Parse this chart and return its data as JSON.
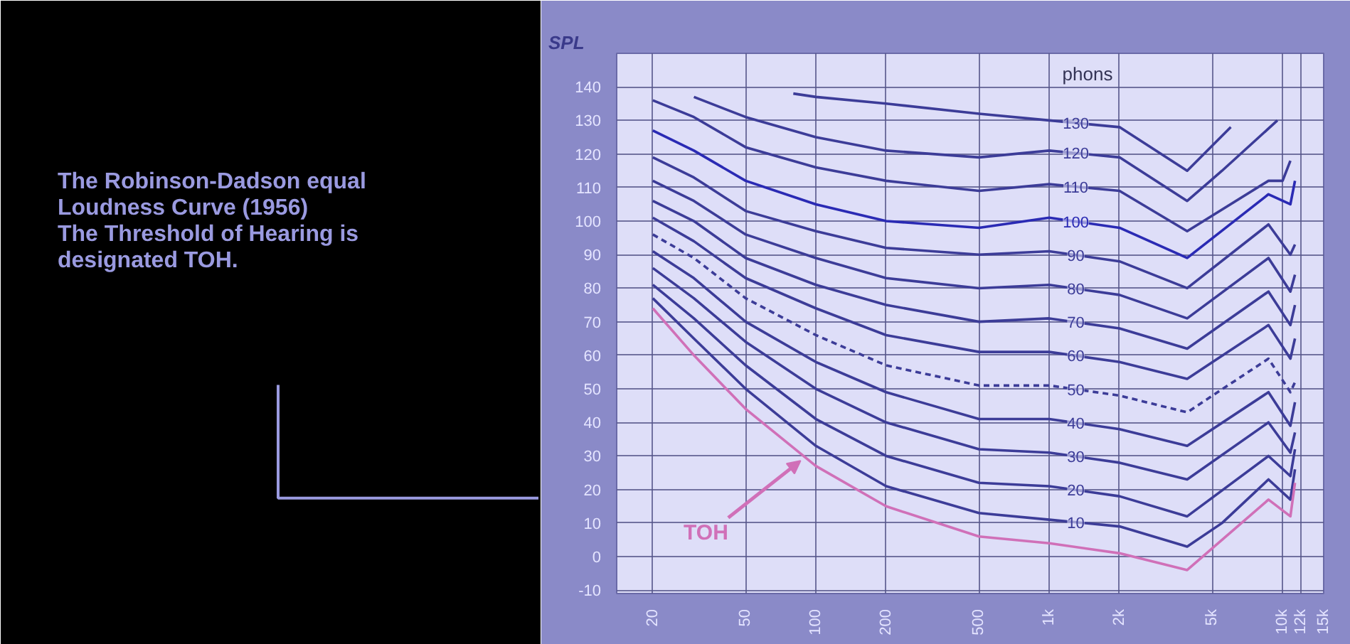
{
  "chart_data": {
    "type": "line",
    "title": "The Robinson-Dadson equal Loudness Curve (1956)",
    "subtitle": "The Threshold of Hearing is designated TOH.",
    "ylabel": "SPL",
    "legend_title": "phons",
    "xlim": [
      14,
      15000
    ],
    "ylim": [
      -11,
      150
    ],
    "xticks": [
      20,
      50,
      100,
      200,
      500,
      {
        "value": 1000,
        "label": "1k"
      },
      {
        "value": 2000,
        "label": "2k"
      },
      {
        "value": 5000,
        "label": "5k"
      },
      {
        "value": 10000,
        "label": "10k"
      },
      {
        "value": 12000,
        "label": "12k"
      },
      {
        "value": 15000,
        "label": "15k"
      }
    ],
    "yticks": [
      -10,
      0,
      10,
      20,
      30,
      40,
      50,
      60,
      70,
      80,
      90,
      100,
      110,
      120,
      130,
      140
    ],
    "grid": true,
    "log": "x",
    "series": [
      {
        "name": "130",
        "color": "#3c3c98",
        "x": [
          80,
          100,
          200,
          500,
          1000,
          2000,
          3900,
          6000
        ],
        "values": [
          138,
          137,
          135,
          132,
          130,
          128,
          115,
          128
        ]
      },
      {
        "name": "120",
        "color": "#3c3c98",
        "x": [
          30,
          50,
          100,
          200,
          500,
          1000,
          2000,
          3900,
          5500,
          9500
        ],
        "values": [
          137,
          131,
          125,
          121,
          119,
          121,
          119,
          106,
          115,
          130
        ]
      },
      {
        "name": "110",
        "color": "#3c3c98",
        "x": [
          20,
          30,
          50,
          100,
          200,
          500,
          1000,
          2000,
          3900,
          8700,
          10000,
          10800
        ],
        "values": [
          136,
          131,
          122,
          116,
          112,
          109,
          111,
          109,
          97,
          112,
          112,
          118
        ]
      },
      {
        "name": "100",
        "color": "#2a2ab4",
        "x": [
          20,
          30,
          50,
          100,
          200,
          500,
          1000,
          2000,
          3900,
          8700,
          10800,
          11300
        ],
        "values": [
          127,
          121,
          112,
          105,
          100,
          98,
          101,
          98,
          89,
          108,
          105,
          112
        ]
      },
      {
        "name": "90",
        "color": "#3c3c98",
        "x": [
          20,
          30,
          50,
          100,
          200,
          500,
          1000,
          2000,
          3900,
          8700,
          10800,
          11300
        ],
        "values": [
          119,
          113,
          103,
          97,
          92,
          90,
          91,
          88,
          80,
          99,
          90,
          93
        ]
      },
      {
        "name": "80",
        "color": "#3c3c98",
        "x": [
          20,
          30,
          50,
          100,
          200,
          500,
          1000,
          2000,
          3900,
          8700,
          10800,
          11300
        ],
        "values": [
          112,
          106,
          96,
          89,
          83,
          80,
          81,
          78,
          71,
          89,
          79,
          84
        ]
      },
      {
        "name": "70",
        "color": "#3c3c98",
        "x": [
          20,
          30,
          50,
          100,
          200,
          500,
          1000,
          2000,
          3900,
          8700,
          10800,
          11300
        ],
        "values": [
          106,
          100,
          89,
          81,
          75,
          70,
          71,
          68,
          62,
          79,
          69,
          75
        ]
      },
      {
        "name": "60",
        "color": "#3c3c98",
        "x": [
          20,
          30,
          50,
          100,
          200,
          500,
          1000,
          2000,
          3900,
          8700,
          10800,
          11300
        ],
        "values": [
          101,
          94,
          83,
          74,
          66,
          61,
          61,
          58,
          53,
          69,
          59,
          65
        ]
      },
      {
        "name": "50",
        "color": "#3c3c98",
        "line_style": "dashed",
        "x": [
          20,
          30,
          50,
          100,
          200,
          500,
          1000,
          2000,
          3900,
          8700,
          10800,
          11300
        ],
        "values": [
          96,
          89,
          77,
          66,
          57,
          51,
          51,
          48,
          43,
          59,
          49,
          52
        ]
      },
      {
        "name": "40",
        "color": "#3c3c98",
        "x": [
          20,
          30,
          50,
          100,
          200,
          500,
          1000,
          2000,
          3900,
          8700,
          10800,
          11300
        ],
        "values": [
          91,
          83,
          70,
          58,
          49,
          41,
          41,
          38,
          33,
          49,
          39,
          46
        ]
      },
      {
        "name": "30",
        "color": "#3c3c98",
        "x": [
          20,
          30,
          50,
          100,
          200,
          500,
          1000,
          2000,
          3900,
          8700,
          10800,
          11300
        ],
        "values": [
          86,
          77,
          64,
          50,
          40,
          32,
          31,
          28,
          23,
          40,
          31,
          37
        ]
      },
      {
        "name": "20",
        "color": "#3c3c98",
        "x": [
          20,
          30,
          50,
          100,
          200,
          500,
          1000,
          2000,
          3900,
          8700,
          10800,
          11300
        ],
        "values": [
          81,
          71,
          57,
          41,
          30,
          22,
          21,
          18,
          12,
          30,
          24,
          32
        ]
      },
      {
        "name": "10",
        "color": "#3c3c98",
        "x": [
          20,
          30,
          50,
          100,
          200,
          500,
          1000,
          2000,
          3900,
          5500,
          8700,
          10800,
          11300
        ],
        "values": [
          77,
          65,
          50,
          33,
          21,
          13,
          11,
          9,
          3,
          10,
          23,
          17,
          26
        ]
      },
      {
        "name": "TOH",
        "color": "#d070b8",
        "x": [
          20,
          30,
          50,
          100,
          200,
          500,
          1000,
          2000,
          3900,
          8700,
          10800,
          11300
        ],
        "values": [
          74,
          60,
          44,
          27,
          15,
          6,
          4,
          1,
          -4,
          17,
          12,
          22
        ]
      }
    ]
  }
}
